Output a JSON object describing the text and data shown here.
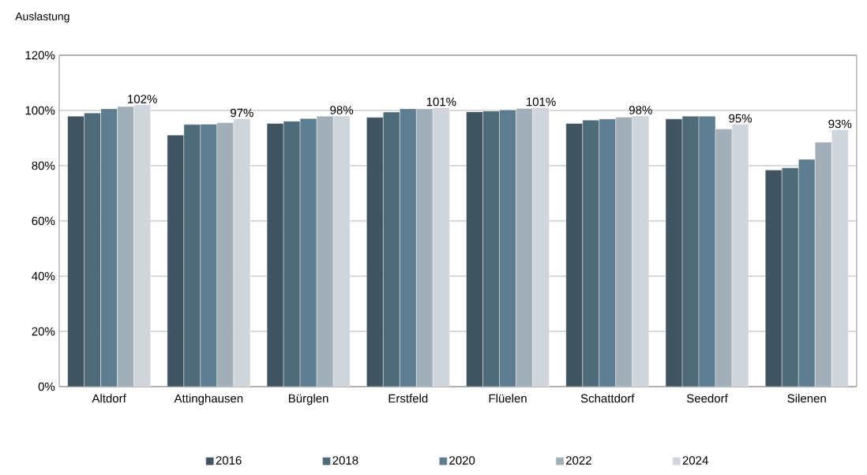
{
  "chart_data": {
    "type": "bar",
    "ylabel": "Auslastung",
    "categories": [
      "Altdorf",
      "Attinghausen",
      "Bürglen",
      "Erstfeld",
      "Flüelen",
      "Schattdorf",
      "Seedorf",
      "Silenen"
    ],
    "series": [
      {
        "name": "2016",
        "color": "#3f5361",
        "values": [
          97.9,
          91.1,
          95.3,
          97.5,
          99.5,
          95.3,
          96.9,
          78.4
        ]
      },
      {
        "name": "2018",
        "color": "#4f6a79",
        "values": [
          99.1,
          94.9,
          96.1,
          99.4,
          99.8,
          96.5,
          97.9,
          79.2
        ]
      },
      {
        "name": "2020",
        "color": "#5f7d90",
        "values": [
          100.6,
          95.0,
          97.1,
          100.6,
          100.2,
          96.9,
          97.9,
          82.3
        ]
      },
      {
        "name": "2022",
        "color": "#a3afb8",
        "values": [
          101.4,
          95.6,
          97.9,
          100.6,
          100.7,
          97.6,
          93.3,
          88.5
        ]
      },
      {
        "name": "2024",
        "color": "#cfd5da",
        "values": [
          102,
          97,
          98,
          101,
          101,
          98,
          95,
          93
        ],
        "value_labels": [
          "102%",
          "97%",
          "98%",
          "101%",
          "101%",
          "98%",
          "95%",
          "93%"
        ]
      }
    ],
    "ylim": [
      0,
      120
    ],
    "yticks": [
      {
        "value": 0,
        "label": "0%"
      },
      {
        "value": 20,
        "label": "20%"
      },
      {
        "value": 40,
        "label": "40%"
      },
      {
        "value": 60,
        "label": "60%"
      },
      {
        "value": 80,
        "label": "80%"
      },
      {
        "value": 100,
        "label": "100%"
      },
      {
        "value": 120,
        "label": "120%"
      }
    ],
    "grid": "y",
    "legend": "bottom"
  }
}
